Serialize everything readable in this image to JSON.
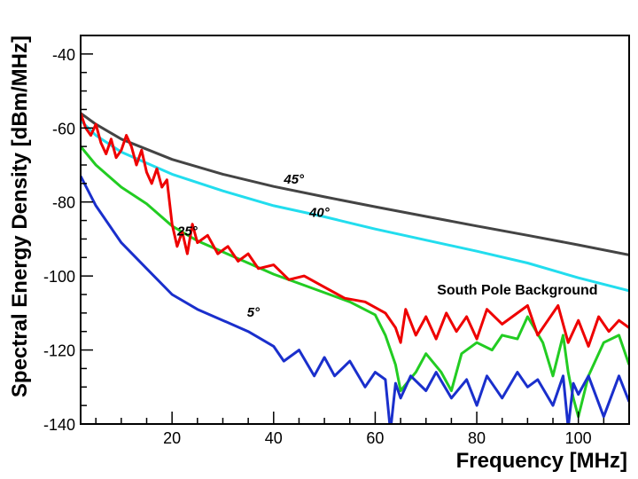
{
  "chart_data": {
    "type": "line",
    "title": "",
    "xlabel": "Frequency [MHz]",
    "ylabel": "Spectral Energy Density [dBm/MHz]",
    "xlim": [
      2,
      110
    ],
    "ylim": [
      -140,
      -35
    ],
    "xticks": [
      20,
      40,
      60,
      80,
      100
    ],
    "yticks": [
      -140,
      -120,
      -100,
      -80,
      -60,
      -40
    ],
    "grid": false,
    "legend": "none",
    "series": [
      {
        "name": "45°",
        "color": "#444444",
        "x": [
          2,
          5,
          10,
          20,
          30,
          40,
          50,
          60,
          70,
          80,
          90,
          100,
          110
        ],
        "y": [
          -56,
          -59,
          -63,
          -68.5,
          -72.5,
          -75.8,
          -78.6,
          -81.3,
          -83.9,
          -86.5,
          -89,
          -91.6,
          -94.3
        ]
      },
      {
        "name": "40°",
        "color": "#22ddee",
        "x": [
          2,
          5,
          10,
          20,
          30,
          40,
          50,
          60,
          70,
          80,
          90,
          100,
          110
        ],
        "y": [
          -58,
          -62,
          -66.5,
          -72.5,
          -77,
          -81,
          -84,
          -87.3,
          -90.3,
          -93.3,
          -96.5,
          -100.5,
          -104
        ]
      },
      {
        "name": "25°",
        "color": "#22cc22",
        "x": [
          2,
          5,
          10,
          15,
          20,
          25,
          30,
          35,
          40,
          45,
          50,
          55,
          60,
          62,
          64,
          65,
          68,
          70,
          73,
          75,
          77,
          80,
          83,
          85,
          88,
          90,
          93,
          95,
          97,
          98,
          99,
          100,
          102,
          105,
          108,
          110
        ],
        "y": [
          -65,
          -70,
          -76,
          -80.5,
          -86.5,
          -90.5,
          -93.5,
          -96.5,
          -99.5,
          -102,
          -104.5,
          -107,
          -110.5,
          -116,
          -124,
          -131,
          -126,
          -121,
          -126,
          -131,
          -121,
          -118,
          -120,
          -116,
          -117,
          -111,
          -118,
          -127,
          -116,
          -126,
          -133,
          -138,
          -127,
          -118,
          -116,
          -124
        ]
      },
      {
        "name": "5°",
        "color": "#1a2fcc",
        "x": [
          2,
          5,
          10,
          15,
          20,
          25,
          30,
          35,
          40,
          42,
          45,
          48,
          50,
          52,
          55,
          58,
          60,
          62,
          63,
          64,
          65,
          67,
          70,
          72,
          75,
          78,
          80,
          82,
          85,
          88,
          90,
          92,
          95,
          97,
          98,
          99,
          100,
          102,
          105,
          108,
          110
        ],
        "y": [
          -73,
          -81,
          -91,
          -98,
          -105,
          -109,
          -112,
          -115,
          -119,
          -123,
          -120,
          -127,
          -122,
          -127,
          -123,
          -130,
          -126,
          -128,
          -142,
          -129,
          -133,
          -127,
          -131,
          -126,
          -133,
          -128,
          -135,
          -127,
          -133,
          -126,
          -130,
          -128,
          -135,
          -127,
          -141,
          -129,
          -132,
          -127,
          -138,
          -127,
          -134
        ]
      },
      {
        "name": "South Pole Background",
        "color": "#ee0000",
        "x": [
          2,
          3,
          4,
          5,
          6,
          7,
          8,
          9,
          10,
          11,
          12,
          13,
          14,
          15,
          16,
          17,
          18,
          19,
          20,
          21,
          22,
          23,
          24,
          25,
          27,
          29,
          31,
          33,
          35,
          37,
          40,
          43,
          46,
          50,
          54,
          58,
          62,
          64,
          65,
          66,
          68,
          70,
          72,
          74,
          76,
          78,
          80,
          82,
          85,
          88,
          90,
          92,
          94,
          96,
          98,
          100,
          102,
          104,
          106,
          108,
          110
        ],
        "y": [
          -56,
          -60,
          -62,
          -59,
          -64,
          -67,
          -63,
          -68,
          -66,
          -62,
          -65,
          -70,
          -66,
          -72,
          -75,
          -71,
          -76,
          -74,
          -86,
          -92,
          -88,
          -94,
          -86,
          -91,
          -89,
          -94,
          -92,
          -96,
          -94,
          -98,
          -97,
          -101,
          -100,
          -103,
          -106,
          -107,
          -110,
          -114,
          -118,
          -109,
          -116,
          -111,
          -117,
          -110,
          -115,
          -111,
          -117,
          -109,
          -113,
          -110,
          -108,
          -116,
          -112,
          -108,
          -118,
          -112,
          -119,
          -111,
          -115,
          -112,
          -114
        ]
      }
    ],
    "annotations": [
      {
        "text": "45°",
        "x": 44,
        "y": -75
      },
      {
        "text": "40°",
        "x": 49,
        "y": -84
      },
      {
        "text": "25°",
        "x": 23,
        "y": -89
      },
      {
        "text": "5°",
        "x": 36,
        "y": -111
      },
      {
        "text": "South Pole Background",
        "x": 88,
        "y": -105
      }
    ]
  }
}
